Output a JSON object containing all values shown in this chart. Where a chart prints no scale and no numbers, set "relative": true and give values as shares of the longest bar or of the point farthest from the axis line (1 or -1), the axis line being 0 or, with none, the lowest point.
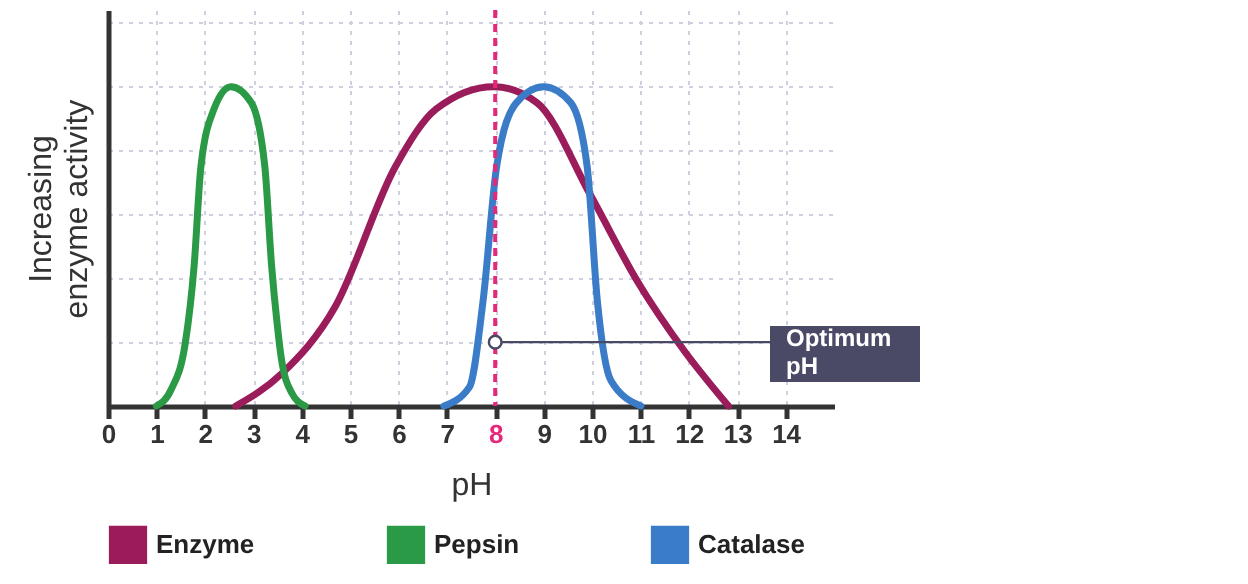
{
  "chart_data": {
    "type": "line",
    "relative": true,
    "xlabel": "pH",
    "ylabel": "Increasing enzyme activity",
    "xlim": [
      0,
      15
    ],
    "xticks": [
      0,
      1,
      2,
      3,
      4,
      5,
      6,
      7,
      8,
      9,
      10,
      11,
      12,
      13,
      14
    ],
    "grid": true,
    "legend": "bottom",
    "line_style": "solid",
    "marker": "none",
    "series": [
      {
        "name": "Enzyme",
        "color": "#9b1c5a",
        "x": [
          2.64,
          3.58,
          4.69,
          5.94,
          6.78,
          7.97,
          8.86,
          9.97,
          10.94,
          11.92,
          12.82
        ],
        "values": [
          0,
          0.1,
          0.31,
          0.75,
          0.93,
          1,
          0.95,
          0.66,
          0.39,
          0.17,
          0
        ]
      },
      {
        "name": "Pepsin",
        "color": "#2a9a46",
        "x": [
          1.0,
          1.3,
          1.6,
          1.78,
          1.92,
          2.19,
          2.54,
          2.96,
          3.24,
          3.38,
          3.5,
          3.58,
          3.8,
          4.07
        ],
        "values": [
          0,
          0.05,
          0.2,
          0.44,
          0.75,
          0.93,
          1,
          0.95,
          0.75,
          0.44,
          0.25,
          0.15,
          0.04,
          0
        ]
      },
      {
        "name": "Catalase",
        "color": "#3a7cc8",
        "x": [
          6.94,
          7.47,
          7.75,
          8.03,
          8.44,
          9.0,
          9.56,
          9.9,
          10.11,
          10.39,
          11.01
        ],
        "values": [
          0,
          0.06,
          0.33,
          0.75,
          0.95,
          1,
          0.95,
          0.75,
          0.33,
          0.08,
          0
        ]
      }
    ],
    "ref_lines": [
      {
        "axis": "x",
        "value": 8,
        "color": "#e6287a",
        "line_style": "dashed"
      }
    ],
    "annotations": [
      {
        "text": "Optimum pH",
        "x": 8,
        "y": 0.2
      }
    ]
  }
}
